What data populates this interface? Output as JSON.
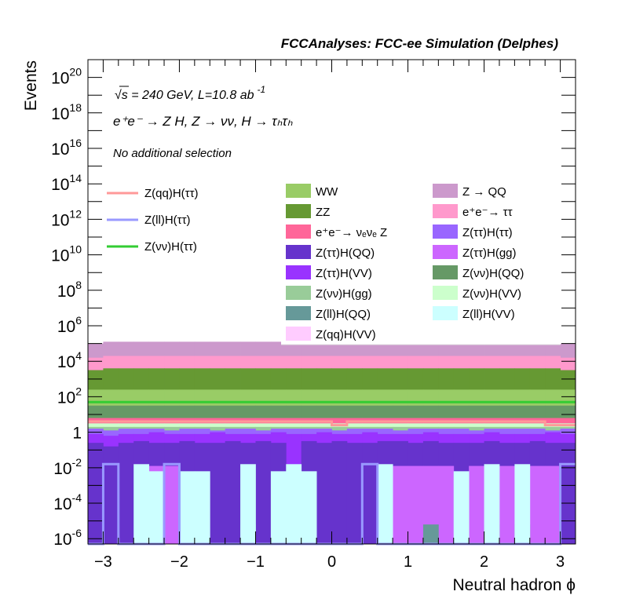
{
  "header": {
    "title": "FCCAnalyses: FCC-ee Simulation (Delphes)"
  },
  "annotations": {
    "energy": "√s = 240 GeV, L=10.8 ab",
    "energy_exp": "-1",
    "process": "e⁺e⁻ → Z H, Z → νν, H → τₕτₕ",
    "selection": "No additional selection"
  },
  "chart_data": {
    "type": "histogram-stacked",
    "title": "FCCAnalyses: FCC-ee Simulation (Delphes)",
    "xlabel": "Neutral hadron ϕ",
    "ylabel": "Events",
    "xlim": [
      -3.2,
      3.2
    ],
    "ylim_log10": [
      -6.3,
      21
    ],
    "y_scale": "log",
    "n_bins": 32,
    "x_ticks": [
      -3,
      -2,
      -1,
      0,
      1,
      2,
      3
    ],
    "x_tick_labels": [
      "−3",
      "−2",
      "−1",
      "0",
      "1",
      "2",
      "3"
    ],
    "y_tick_labels": [
      {
        "base": "10",
        "exp": "20",
        "v": 20
      },
      {
        "base": "10",
        "exp": "18",
        "v": 18
      },
      {
        "base": "10",
        "exp": "16",
        "v": 16
      },
      {
        "base": "10",
        "exp": "14",
        "v": 14
      },
      {
        "base": "10",
        "exp": "12",
        "v": 12
      },
      {
        "base": "10",
        "exp": "10",
        "v": 10
      },
      {
        "base": "10",
        "exp": "8",
        "v": 8
      },
      {
        "base": "10",
        "exp": "6",
        "v": 6
      },
      {
        "base": "10",
        "exp": "4",
        "v": 4
      },
      {
        "base": "10",
        "exp": "2",
        "v": 2
      },
      {
        "base": "1",
        "exp": "",
        "v": 0
      },
      {
        "base": "10",
        "exp": "-2",
        "v": -2
      },
      {
        "base": "10",
        "exp": "-4",
        "v": -4
      },
      {
        "base": "10",
        "exp": "-6",
        "v": -6
      }
    ],
    "stack_log10_tops": [
      {
        "name": "Z(ll)H(VV)",
        "color": "#ccffff",
        "values": [
          -6.3,
          -6.3,
          -6.3,
          -1.8,
          -2.2,
          -6.3,
          -2.2,
          -2.2,
          -6.3,
          -6.3,
          -1.8,
          -6.3,
          -2.2,
          -1.8,
          -2.2,
          -6.3,
          -6.3,
          -6.3,
          -6.3,
          -1.8,
          -6.3,
          -6.3,
          -6.3,
          -6.3,
          -2.2,
          -6.3,
          -1.8,
          -6.3,
          -1.8,
          -6.3,
          -6.3,
          -6.3
        ]
      },
      {
        "name": "Z(ll)H(QQ)",
        "color": "#669999",
        "values": [
          -6.3,
          -6.3,
          -6.3,
          -6.3,
          -6.3,
          -6.3,
          -6.3,
          -6.3,
          -6.3,
          -6.3,
          -5.2,
          -6.3,
          -6.3,
          -6.3,
          -6.3,
          -6.3,
          -6.3,
          -6.3,
          -6.3,
          -6.3,
          -6.3,
          -6.3,
          -5.2,
          -6.3,
          -6.3,
          -6.3,
          -5.2,
          -6.3,
          -5.2,
          -6.3,
          -6.3,
          -6.3
        ]
      },
      {
        "name": "Z(ττ)H(gg)",
        "color": "#cc66ff",
        "values": [
          -6.3,
          -6.3,
          -6.3,
          -6.3,
          -1.9,
          -1.9,
          -6.3,
          -6.3,
          -6.3,
          -6.3,
          -6.3,
          -6.3,
          -6.3,
          -6.3,
          -6.3,
          -6.3,
          -6.3,
          -6.3,
          -6.3,
          -6.3,
          -1.9,
          -1.9,
          -1.9,
          -1.9,
          -6.3,
          -1.9,
          -6.3,
          -1.9,
          -1.9,
          -1.9,
          -1.9,
          -6.3
        ]
      },
      {
        "name": "Z(ττ)H(QQ)",
        "color": "#6633cc",
        "values": [
          -0.6,
          -0.8,
          -0.6,
          -0.5,
          -0.6,
          -0.6,
          -0.5,
          -0.6,
          -0.6,
          -0.5,
          -0.6,
          -0.5,
          -0.6,
          -1.9,
          -0.5,
          -0.6,
          -0.5,
          -0.6,
          -0.6,
          -0.5,
          -0.5,
          -0.6,
          -0.5,
          -0.6,
          -0.6,
          -0.6,
          -0.5,
          -0.6,
          -0.6,
          -0.5,
          -0.6,
          -0.6
        ]
      },
      {
        "name": "Z(ττ)H(VV)",
        "color": "#9933ff",
        "values": [
          -0.1,
          -0.2,
          -0.1,
          -0.1,
          0,
          -0.1,
          -0.1,
          -0.1,
          0,
          -0.1,
          -0.1,
          -0.1,
          0,
          -0.1,
          -0.1,
          0,
          -0.1,
          -0.1,
          0,
          -0.1,
          -0.1,
          -0.1,
          0,
          -0.1,
          -0.1,
          -0.1,
          0,
          -0.1,
          -0.1,
          -0.1,
          0,
          -0.1
        ]
      },
      {
        "name": "Z(ττ)H(ττ)",
        "color": "#9966ff",
        "values": [
          0.2,
          0.1,
          0.2,
          0.2,
          0.2,
          0.1,
          0.2,
          0.2,
          0.1,
          0.2,
          0.2,
          0.1,
          0.2,
          0.2,
          0.2,
          0.2,
          0.1,
          0.2,
          0.2,
          0.2,
          0.1,
          0.2,
          0.2,
          0.2,
          0.2,
          0.1,
          0.2,
          0.2,
          0.2,
          0.2,
          0.1,
          0.2
        ]
      },
      {
        "name": "Z(νν)H(gg)",
        "color": "#99cc99",
        "values": [
          0.3,
          0.3,
          0.3,
          0.3,
          0.3,
          0.3,
          0.3,
          0.3,
          0.3,
          0.3,
          0.3,
          0.3,
          0.3,
          0.3,
          0.3,
          0.3,
          0.3,
          0.3,
          0.3,
          0.3,
          0.3,
          0.3,
          0.3,
          0.3,
          0.3,
          0.3,
          0.3,
          0.3,
          0.3,
          0.3,
          0.3,
          0.3
        ]
      },
      {
        "name": "Z(νν)H(VV)",
        "color": "#ccffcc",
        "values": [
          0.5,
          0.5,
          0.5,
          0.5,
          0.5,
          0.5,
          0.5,
          0.5,
          0.5,
          0.5,
          0.5,
          0.5,
          0.5,
          0.5,
          0.5,
          0.5,
          0.5,
          0.5,
          0.5,
          0.5,
          0.5,
          0.5,
          0.5,
          0.5,
          0.5,
          0.5,
          0.5,
          0.5,
          0.5,
          0.5,
          0.5,
          0.5
        ]
      },
      {
        "name": "e⁺e⁻→ νₑνₑ Z",
        "color": "#ff6699",
        "values": [
          0.8,
          0.8,
          0.8,
          0.8,
          0.8,
          0.8,
          0.8,
          0.8,
          0.8,
          0.8,
          0.8,
          0.8,
          0.8,
          0.8,
          0.8,
          0.8,
          0.8,
          0.8,
          0.8,
          0.8,
          0.8,
          0.8,
          0.8,
          0.8,
          0.8,
          0.8,
          0.8,
          0.8,
          0.8,
          0.8,
          0.8,
          0.8
        ]
      },
      {
        "name": "Z(νν)H(QQ)",
        "color": "#669966",
        "values": [
          1.5,
          1.5,
          1.5,
          1.5,
          1.5,
          1.5,
          1.5,
          1.5,
          1.5,
          1.5,
          1.5,
          1.5,
          1.5,
          1.5,
          1.5,
          1.5,
          1.5,
          1.5,
          1.5,
          1.5,
          1.5,
          1.5,
          1.5,
          1.5,
          1.5,
          1.5,
          1.5,
          1.5,
          1.5,
          1.5,
          1.5,
          1.5
        ]
      },
      {
        "name": "WW",
        "color": "#99cc66",
        "values": [
          2.4,
          2.4,
          2.4,
          2.4,
          2.4,
          2.4,
          2.4,
          2.4,
          2.4,
          2.4,
          2.4,
          2.4,
          2.4,
          2.4,
          2.4,
          2.4,
          2.4,
          2.4,
          2.4,
          2.4,
          2.4,
          2.4,
          2.4,
          2.4,
          2.4,
          2.4,
          2.4,
          2.4,
          2.4,
          2.4,
          2.4,
          2.4
        ]
      },
      {
        "name": "ZZ",
        "color": "#669933",
        "values": [
          3.5,
          3.6,
          3.6,
          3.6,
          3.6,
          3.6,
          3.6,
          3.6,
          3.6,
          3.6,
          3.6,
          3.6,
          3.6,
          3.6,
          3.6,
          3.6,
          3.6,
          3.6,
          3.6,
          3.6,
          3.6,
          3.6,
          3.6,
          3.6,
          3.6,
          3.6,
          3.6,
          3.6,
          3.6,
          3.6,
          3.6,
          3.5
        ]
      },
      {
        "name": "e⁺e⁻→ ττ",
        "color": "#ff99cc",
        "values": [
          4.2,
          4.3,
          4.3,
          4.3,
          4.3,
          4.3,
          4.3,
          4.3,
          4.3,
          4.3,
          4.3,
          4.3,
          4.3,
          4.3,
          4.3,
          4.3,
          4.3,
          4.3,
          4.3,
          4.3,
          4.3,
          4.3,
          4.3,
          4.3,
          4.3,
          4.3,
          4.3,
          4.3,
          4.3,
          4.3,
          4.3,
          4.2
        ]
      },
      {
        "name": "Z → QQ",
        "color": "#cc99cc",
        "values": [
          5.0,
          5.1,
          5.1,
          5.1,
          5.1,
          5.1,
          5.1,
          5.1,
          5.1,
          5.1,
          5.1,
          5.1,
          5.1,
          5.1,
          5.1,
          5.1,
          5.1,
          5.1,
          5.1,
          5.1,
          5.1,
          5.1,
          5.1,
          5.1,
          5.1,
          5.1,
          5.1,
          5.1,
          5.1,
          5.1,
          5.1,
          5.0
        ]
      }
    ],
    "extra_stack_entries": [
      {
        "name": "Z(qq)H(VV)",
        "color": "#ffccff"
      }
    ],
    "signal_lines_log10": [
      {
        "name": "Z(qq)H(ττ)",
        "color": "#ff9999",
        "values": [
          0.6,
          0.6,
          0.6,
          0.6,
          0.6,
          0.6,
          0.6,
          0.6,
          0.6,
          0.6,
          0.6,
          0.6,
          0.6,
          0.6,
          0.6,
          0.6,
          0.4,
          0.6,
          0.6,
          0.6,
          0.6,
          0.6,
          0.6,
          0.6,
          0.6,
          0.6,
          0.6,
          0.6,
          0.6,
          0.6,
          0.4,
          0.4
        ]
      },
      {
        "name": "Z(ll)H(ττ)",
        "color": "#9999ff",
        "values": [
          -6.3,
          -1.8,
          -6.3,
          -6.3,
          -6.3,
          -1.8,
          -6.3,
          -6.3,
          -6.3,
          -6.3,
          -6.3,
          -6.3,
          -6.3,
          -6.3,
          -6.3,
          -6.3,
          -6.3,
          -6.3,
          -1.8,
          -6.3,
          -6.3,
          -6.3,
          -6.3,
          -6.3,
          -6.3,
          -6.3,
          -6.3,
          -6.3,
          -6.3,
          -6.3,
          -6.3,
          -1.8
        ]
      },
      {
        "name": "Z(νν)H(ττ)",
        "color": "#33cc33",
        "values": [
          1.7,
          1.7,
          1.7,
          1.7,
          1.7,
          1.7,
          1.7,
          1.7,
          1.7,
          1.7,
          1.7,
          1.7,
          1.7,
          1.7,
          1.7,
          1.7,
          1.7,
          1.7,
          1.7,
          1.7,
          1.7,
          1.7,
          1.7,
          1.7,
          1.7,
          1.7,
          1.7,
          1.7,
          1.7,
          1.7,
          1.7,
          1.7
        ]
      }
    ],
    "legend_placement": "top",
    "grid": false
  }
}
